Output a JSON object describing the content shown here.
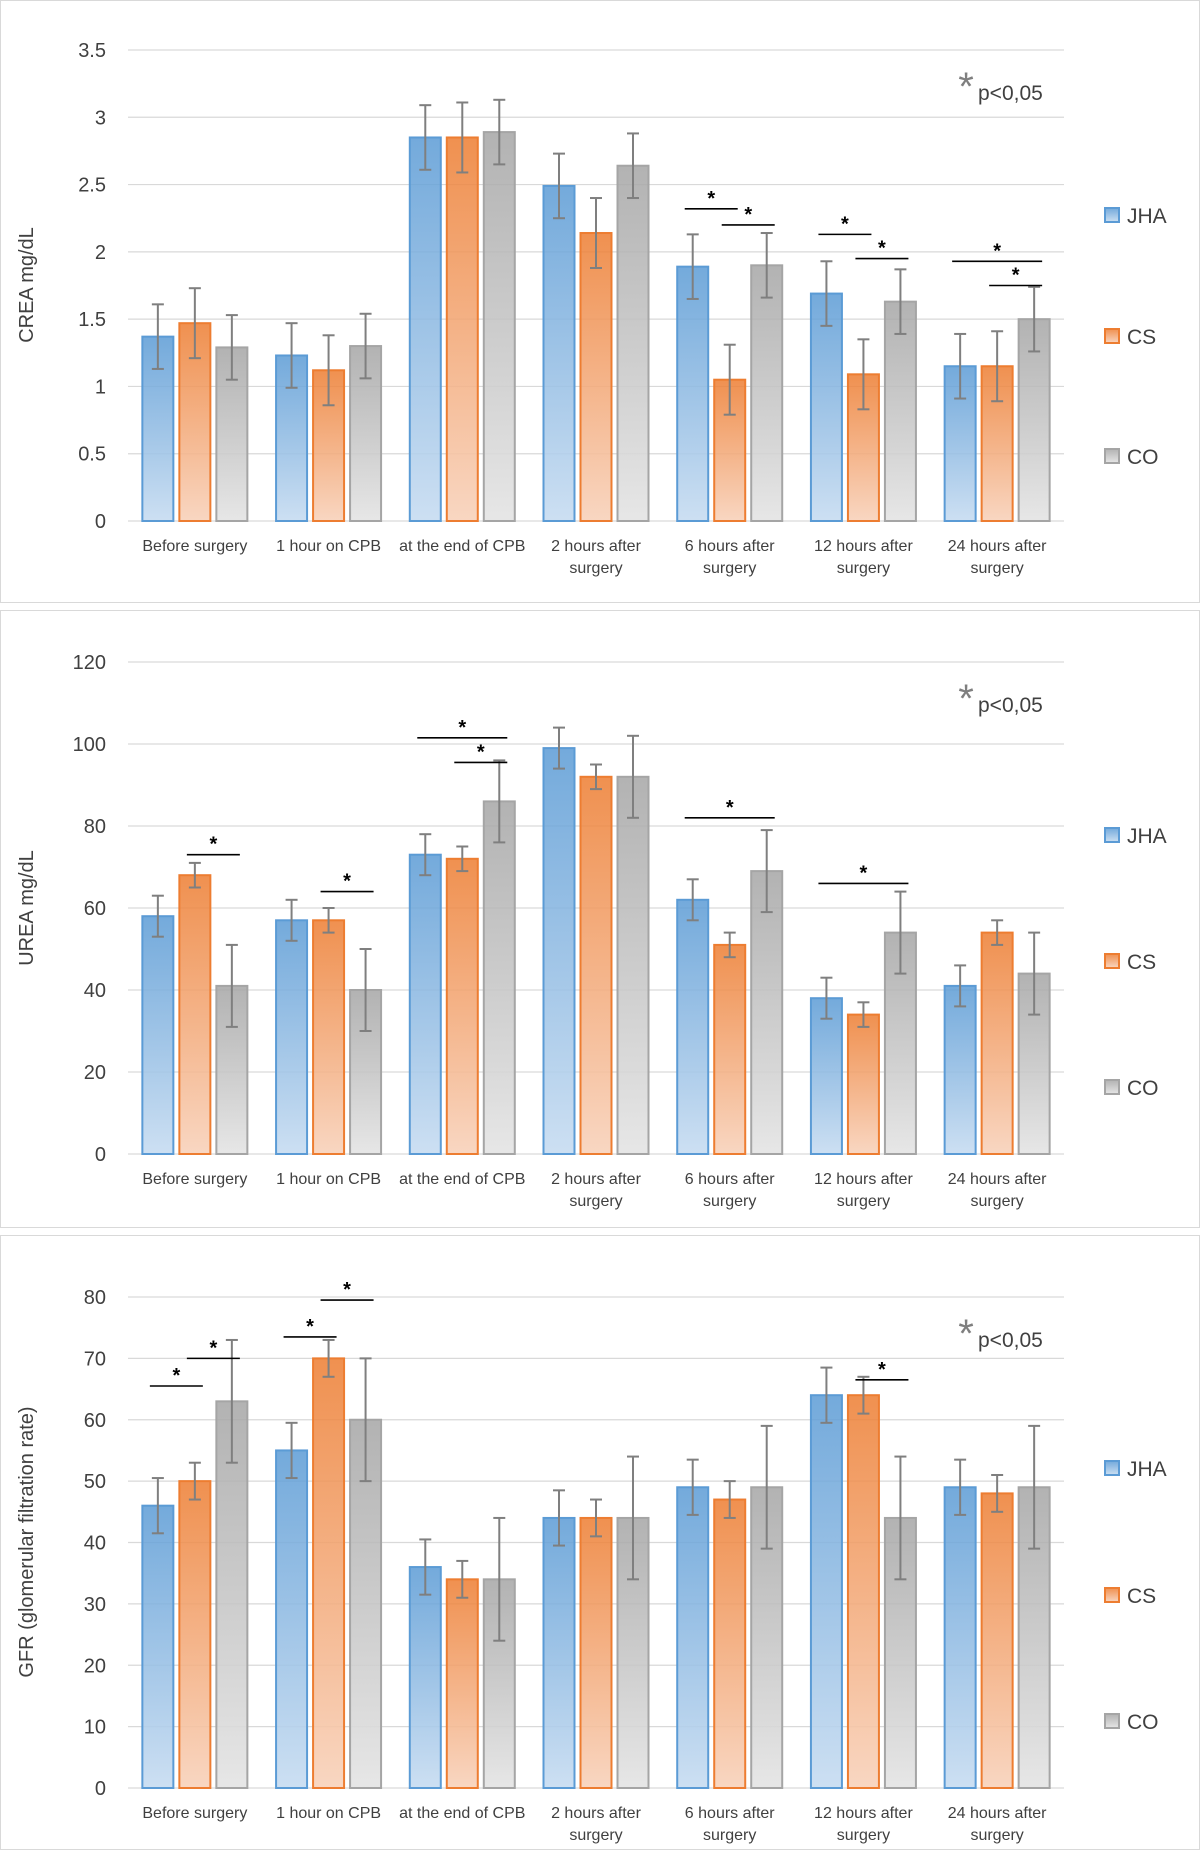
{
  "colors": {
    "JHA": "#5b9bd5",
    "CS": "#ed7d31",
    "CO": "#a5a5a5",
    "grid": "#d9d9d9",
    "text": "#404040",
    "significance_star": "#7f7f7f"
  },
  "chart_data": [
    {
      "type": "bar",
      "ylabel": "CREA mg/dL",
      "ylim": [
        0,
        3.5
      ],
      "ytick_step": 0.5,
      "ytick_labels": [
        "0",
        "0.5",
        "1",
        "1.5",
        "2",
        "2.5",
        "3",
        "3.5"
      ],
      "significance_note": "p<0,05",
      "significance_star": "*",
      "categories": [
        [
          "Before surgery"
        ],
        [
          "1 hour on CPB"
        ],
        [
          "at the end of CPB"
        ],
        [
          "2 hours after",
          "surgery"
        ],
        [
          "6 hours after",
          "surgery"
        ],
        [
          "12 hours after",
          "surgery"
        ],
        [
          "24 hours after",
          "surgery"
        ]
      ],
      "series": [
        {
          "name": "JHA",
          "values": [
            1.37,
            1.23,
            2.85,
            2.49,
            1.89,
            1.69,
            1.15
          ],
          "errors": [
            0.24,
            0.24,
            0.24,
            0.24,
            0.24,
            0.24,
            0.24
          ]
        },
        {
          "name": "CS",
          "values": [
            1.47,
            1.12,
            2.85,
            2.14,
            1.05,
            1.09,
            1.15
          ],
          "errors": [
            0.26,
            0.26,
            0.26,
            0.26,
            0.26,
            0.26,
            0.26
          ]
        },
        {
          "name": "CO",
          "values": [
            1.29,
            1.3,
            2.89,
            2.64,
            1.9,
            1.63,
            1.5
          ],
          "errors": [
            0.24,
            0.24,
            0.24,
            0.24,
            0.24,
            0.24,
            0.24
          ]
        }
      ],
      "significance": [
        {
          "category": 4,
          "from": 0,
          "to": 1,
          "y": 2.32
        },
        {
          "category": 4,
          "from": 1,
          "to": 2,
          "y": 2.2
        },
        {
          "category": 5,
          "from": 0,
          "to": 1,
          "y": 2.13
        },
        {
          "category": 5,
          "from": 1,
          "to": 2,
          "y": 1.95
        },
        {
          "category": 6,
          "from": 0,
          "to": 2,
          "y": 1.93
        },
        {
          "category": 6,
          "from": 1,
          "to": 2,
          "y": 1.75
        }
      ]
    },
    {
      "type": "bar",
      "ylabel": "UREA mg/dL",
      "ylim": [
        0,
        120
      ],
      "ytick_step": 20,
      "ytick_labels": [
        "0",
        "20",
        "40",
        "60",
        "80",
        "100",
        "120"
      ],
      "significance_note": "p<0,05",
      "significance_star": "*",
      "categories": [
        [
          "Before surgery"
        ],
        [
          "1 hour on CPB"
        ],
        [
          "at the end of CPB"
        ],
        [
          "2 hours after",
          "surgery"
        ],
        [
          "6 hours after",
          "surgery"
        ],
        [
          "12 hours after",
          "surgery"
        ],
        [
          "24 hours after",
          "surgery"
        ]
      ],
      "series": [
        {
          "name": "JHA",
          "values": [
            58,
            57,
            73,
            99,
            62,
            38,
            41
          ],
          "errors": [
            5,
            5,
            5,
            5,
            5,
            5,
            5
          ]
        },
        {
          "name": "CS",
          "values": [
            68,
            57,
            72,
            92,
            51,
            34,
            54
          ],
          "errors": [
            3,
            3,
            3,
            3,
            3,
            3,
            3
          ]
        },
        {
          "name": "CO",
          "values": [
            41,
            40,
            86,
            92,
            69,
            54,
            44
          ],
          "errors": [
            10,
            10,
            10,
            10,
            10,
            10,
            10
          ]
        }
      ],
      "significance": [
        {
          "category": 0,
          "from": 1,
          "to": 2,
          "y": 73
        },
        {
          "category": 1,
          "from": 1,
          "to": 2,
          "y": 64
        },
        {
          "category": 2,
          "from": 0,
          "to": 2,
          "y": 101.5
        },
        {
          "category": 2,
          "from": 1,
          "to": 2,
          "y": 95.5
        },
        {
          "category": 4,
          "from": 0,
          "to": 2,
          "y": 82
        },
        {
          "category": 5,
          "from": 0,
          "to": 2,
          "y": 66
        }
      ]
    },
    {
      "type": "bar",
      "ylabel": "GFR (glomerular filtration rate)",
      "ylim": [
        0,
        80
      ],
      "ytick_step": 10,
      "ytick_labels": [
        "0",
        "10",
        "20",
        "30",
        "40",
        "50",
        "60",
        "70",
        "80"
      ],
      "significance_note": "p<0,05",
      "significance_star": "*",
      "categories": [
        [
          "Before surgery"
        ],
        [
          "1 hour on CPB"
        ],
        [
          "at the end of CPB"
        ],
        [
          "2 hours after",
          "surgery"
        ],
        [
          "6 hours after",
          "surgery"
        ],
        [
          "12 hours after",
          "surgery"
        ],
        [
          "24 hours after",
          "surgery"
        ]
      ],
      "series": [
        {
          "name": "JHA",
          "values": [
            46,
            55,
            36,
            44,
            49,
            64,
            49
          ],
          "errors": [
            4.5,
            4.5,
            4.5,
            4.5,
            4.5,
            4.5,
            4.5
          ]
        },
        {
          "name": "CS",
          "values": [
            50,
            70,
            34,
            44,
            47,
            64,
            48
          ],
          "errors": [
            3,
            3,
            3,
            3,
            3,
            3,
            3
          ]
        },
        {
          "name": "CO",
          "values": [
            63,
            60,
            34,
            44,
            49,
            44,
            49
          ],
          "errors": [
            10,
            10,
            10,
            10,
            10,
            10,
            10
          ]
        }
      ],
      "significance": [
        {
          "category": 0,
          "from": 0,
          "to": 1,
          "y": 65.5
        },
        {
          "category": 0,
          "from": 1,
          "to": 2,
          "y": 70
        },
        {
          "category": 1,
          "from": 0,
          "to": 1,
          "y": 73.5
        },
        {
          "category": 1,
          "from": 1,
          "to": 2,
          "y": 79.5
        },
        {
          "category": 5,
          "from": 1,
          "to": 2,
          "y": 66.5
        }
      ]
    }
  ]
}
